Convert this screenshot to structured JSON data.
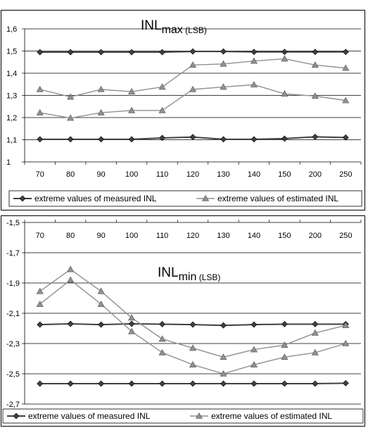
{
  "chart_data": [
    {
      "type": "line",
      "title": "INL",
      "title_sub": "max",
      "title_unit": " (LSB)",
      "categories": [
        "70",
        "80",
        "90",
        "100",
        "110",
        "120",
        "130",
        "140",
        "150",
        "200",
        "250"
      ],
      "ylim": [
        1,
        1.6
      ],
      "yticks": [
        "1",
        "1,1",
        "1,2",
        "1,3",
        "1,4",
        "1,5",
        "1,6"
      ],
      "x_axis_position": "bottom",
      "grid": true,
      "legend": "bottom",
      "series": [
        {
          "name": "extreme values of measured INL",
          "marker": "diamond",
          "color": "#404040",
          "values": [
            1.495,
            1.495,
            1.495,
            1.495,
            1.495,
            1.498,
            1.498,
            1.496,
            1.496,
            1.496,
            1.496
          ]
        },
        {
          "name": "",
          "marker": "diamond",
          "color": "#404040",
          "values": [
            1.102,
            1.102,
            1.102,
            1.102,
            1.108,
            1.112,
            1.102,
            1.102,
            1.105,
            1.113,
            1.11
          ]
        },
        {
          "name": "extreme values of estimated INL",
          "marker": "triangle",
          "color": "#909090",
          "values": [
            1.327,
            1.293,
            1.327,
            1.317,
            1.338,
            1.437,
            1.442,
            1.455,
            1.465,
            1.437,
            1.423
          ]
        },
        {
          "name": "",
          "marker": "triangle",
          "color": "#909090",
          "values": [
            1.222,
            1.198,
            1.222,
            1.232,
            1.232,
            1.327,
            1.338,
            1.348,
            1.307,
            1.297,
            1.277
          ]
        }
      ]
    },
    {
      "type": "line",
      "title": "INL",
      "title_sub": "min",
      "title_unit": " (LSB)",
      "categories": [
        "70",
        "80",
        "90",
        "100",
        "110",
        "120",
        "130",
        "140",
        "150",
        "200",
        "250"
      ],
      "ylim": [
        -2.7,
        -1.5
      ],
      "yticks": [
        "-2,7",
        "-2,5",
        "-2,3",
        "-2,1",
        "-1,9",
        "-1,7",
        "-1,5"
      ],
      "x_axis_position": "top",
      "grid": true,
      "legend": "bottom",
      "series": [
        {
          "name": "extreme values of measured INL",
          "marker": "diamond",
          "color": "#404040",
          "values": [
            -2.175,
            -2.17,
            -2.175,
            -2.17,
            -2.172,
            -2.175,
            -2.18,
            -2.175,
            -2.172,
            -2.172,
            -2.172
          ]
        },
        {
          "name": "",
          "marker": "diamond",
          "color": "#404040",
          "values": [
            -2.565,
            -2.565,
            -2.565,
            -2.565,
            -2.565,
            -2.565,
            -2.565,
            -2.565,
            -2.565,
            -2.565,
            -2.562
          ]
        },
        {
          "name": "extreme values of estimated INL",
          "marker": "triangle",
          "color": "#909090",
          "values": [
            -1.955,
            -1.81,
            -1.955,
            -2.13,
            -2.27,
            -2.33,
            -2.39,
            -2.34,
            -2.31,
            -2.23,
            -2.18
          ]
        },
        {
          "name": "",
          "marker": "triangle",
          "color": "#909090",
          "values": [
            -2.04,
            -1.88,
            -2.04,
            -2.22,
            -2.36,
            -2.44,
            -2.5,
            -2.44,
            -2.39,
            -2.36,
            -2.3
          ]
        }
      ]
    }
  ]
}
